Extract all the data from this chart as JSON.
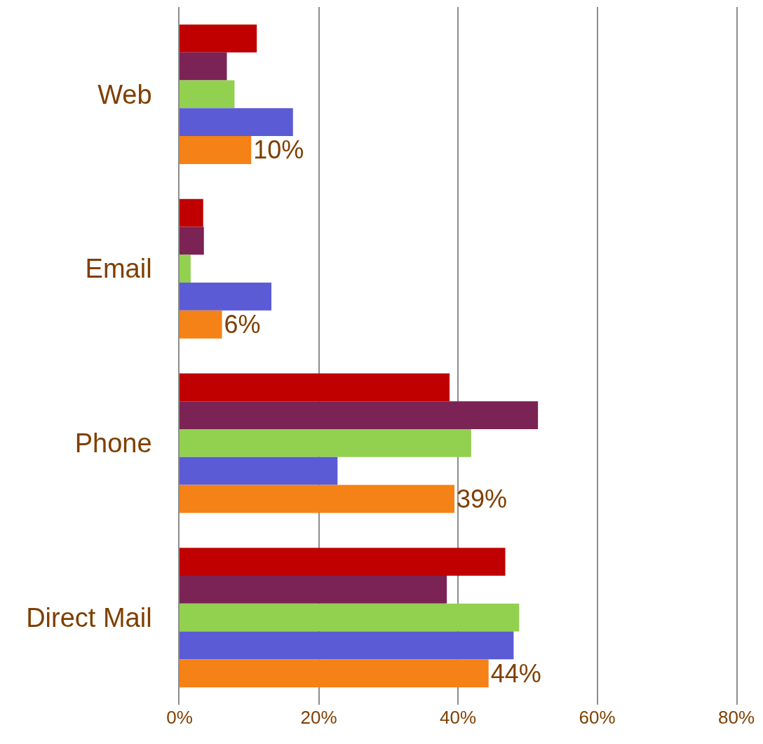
{
  "chart_data": {
    "type": "bar",
    "orientation": "horizontal",
    "categories": [
      "Web",
      "Email",
      "Phone",
      "Direct Mail"
    ],
    "series": [
      {
        "color": "#c00000",
        "values": [
          11.1,
          3.4,
          38.8,
          46.8
        ]
      },
      {
        "color": "#7b2355",
        "values": [
          6.8,
          3.5,
          51.5,
          38.4
        ]
      },
      {
        "color": "#92d050",
        "values": [
          7.9,
          1.6,
          41.9,
          48.8
        ]
      },
      {
        "color": "#5b5bd5",
        "values": [
          16.3,
          13.2,
          22.7,
          48.0
        ]
      },
      {
        "color": "#f58216",
        "values": [
          10.3,
          6.1,
          39.5,
          44.4
        ],
        "value_labels": [
          "10%",
          "6%",
          "39%",
          "44%"
        ]
      }
    ],
    "xlim": [
      0,
      80
    ],
    "xticks": [
      {
        "value": 0,
        "label": "0%"
      },
      {
        "value": 20,
        "label": "20%"
      },
      {
        "value": 40,
        "label": "40%"
      },
      {
        "value": 60,
        "label": "60%"
      },
      {
        "value": 80,
        "label": "80%"
      }
    ],
    "grid": "x"
  }
}
